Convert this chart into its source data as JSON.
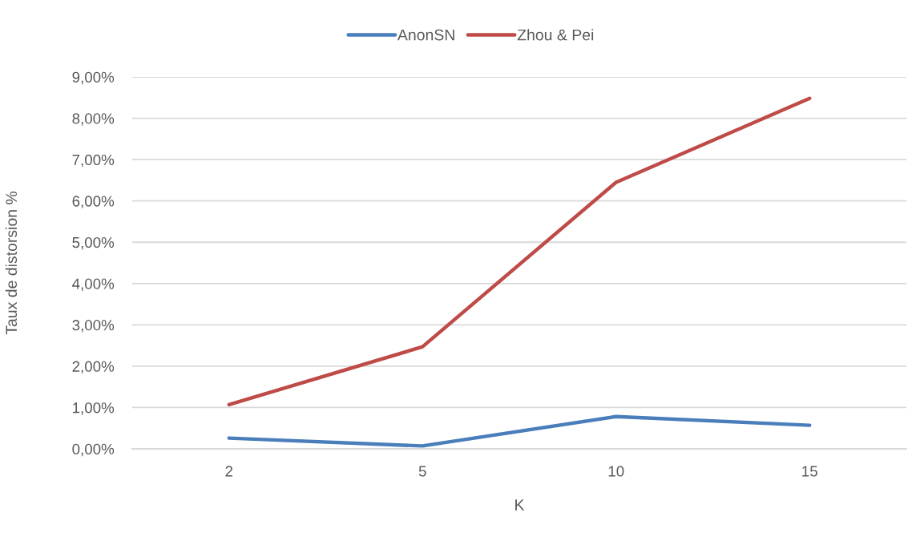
{
  "chart_data": {
    "type": "line",
    "xlabel": "K",
    "ylabel": "Taux de distorsion %",
    "categories": [
      "2",
      "5",
      "10",
      "15"
    ],
    "series": [
      {
        "name": "AnonSN",
        "color": "#4a7ebb",
        "values": [
          0.26,
          0.07,
          0.78,
          0.57
        ]
      },
      {
        "name": "Zhou & Pei",
        "color": "#be4b48",
        "values": [
          1.07,
          2.47,
          6.45,
          8.48
        ]
      }
    ],
    "ylim": [
      0,
      9
    ],
    "yticks": [
      {
        "value": 0,
        "label": "0,00%"
      },
      {
        "value": 1,
        "label": "1,00%"
      },
      {
        "value": 2,
        "label": "2,00%"
      },
      {
        "value": 3,
        "label": "3,00%"
      },
      {
        "value": 4,
        "label": "4,00%"
      },
      {
        "value": 5,
        "label": "5,00%"
      },
      {
        "value": 6,
        "label": "6,00%"
      },
      {
        "value": 7,
        "label": "7,00%"
      },
      {
        "value": 8,
        "label": "8,00%"
      },
      {
        "value": 9,
        "label": "9,00%"
      }
    ],
    "grid": "y",
    "legend": "top",
    "marker": "none",
    "line_style": "solid"
  }
}
